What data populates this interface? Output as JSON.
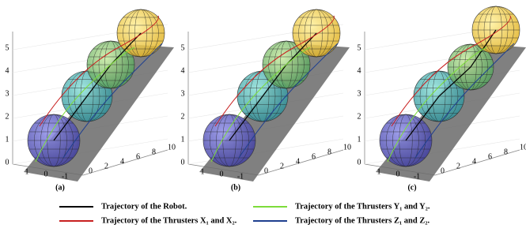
{
  "panels": [
    {
      "label": "(a)",
      "zticks": [
        "0",
        "1",
        "2",
        "3",
        "4",
        "5"
      ],
      "xticks": [
        "1",
        "0",
        "-1"
      ],
      "yticks": [
        "0",
        "2",
        "4",
        "6",
        "8",
        "10"
      ]
    },
    {
      "label": "(b)",
      "zticks": [
        "0",
        "1",
        "2",
        "3",
        "4",
        "5"
      ],
      "xticks": [
        "1",
        "0",
        "-1"
      ],
      "yticks": [
        "0",
        "2",
        "4",
        "6",
        "8",
        "10"
      ]
    },
    {
      "label": "(c)",
      "zticks": [
        "0",
        "1",
        "2",
        "3",
        "4",
        "5"
      ],
      "xticks": [
        "1",
        "0",
        "-1"
      ],
      "yticks": [
        "0",
        "2",
        "4",
        "6",
        "8",
        "10"
      ]
    }
  ],
  "legend": [
    {
      "text": "Trajectory of the Robot.",
      "color": "#000000"
    },
    {
      "text": "Trajectory of the Thrusters Y₁ and Y₂.",
      "color": "#7ddc3a"
    },
    {
      "text": "Trajectory of the Thrusters X₁ and X₂.",
      "color": "#c82020"
    },
    {
      "text": "Trajectory of the Thrusters Z₁ and Z₂.",
      "color": "#1f3f8f"
    }
  ]
}
